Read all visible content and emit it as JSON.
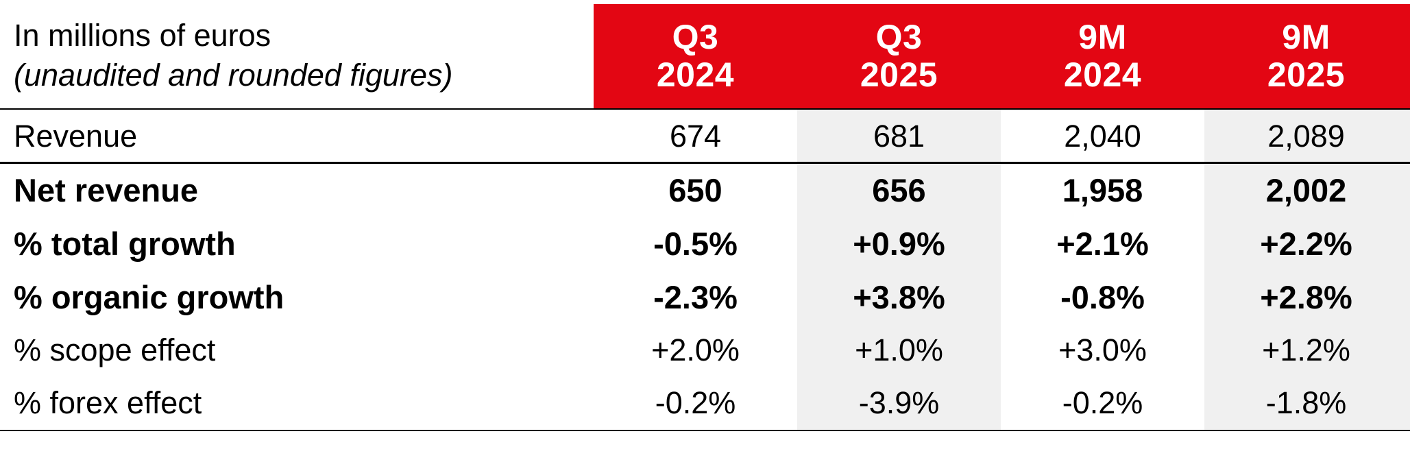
{
  "header": {
    "unit_line1": "In millions of euros",
    "unit_line2": "(unaudited and rounded figures)",
    "columns": [
      {
        "line1": "Q3",
        "line2": "2024"
      },
      {
        "line1": "Q3",
        "line2": "2025"
      },
      {
        "line1": "9M",
        "line2": "2024"
      },
      {
        "line1": "9M",
        "line2": "2025"
      }
    ]
  },
  "rows": [
    {
      "label": "Revenue",
      "values": [
        "674",
        "681",
        "2,040",
        "2,089"
      ]
    },
    {
      "label": "Net revenue",
      "values": [
        "650",
        "656",
        "1,958",
        "2,002"
      ]
    },
    {
      "label": "% total growth",
      "values": [
        "-0.5%",
        "+0.9%",
        "+2.1%",
        "+2.2%"
      ]
    },
    {
      "label": "% organic growth",
      "values": [
        "-2.3%",
        "+3.8%",
        "-0.8%",
        "+2.8%"
      ]
    },
    {
      "label": "% scope effect",
      "values": [
        "+2.0%",
        "+1.0%",
        "+3.0%",
        "+1.2%"
      ]
    },
    {
      "label": "% forex effect",
      "values": [
        "-0.2%",
        "-3.9%",
        "-0.2%",
        "-1.8%"
      ]
    }
  ],
  "colors": {
    "header_red": "#e30613",
    "shaded_column": "#f0f0f0"
  }
}
